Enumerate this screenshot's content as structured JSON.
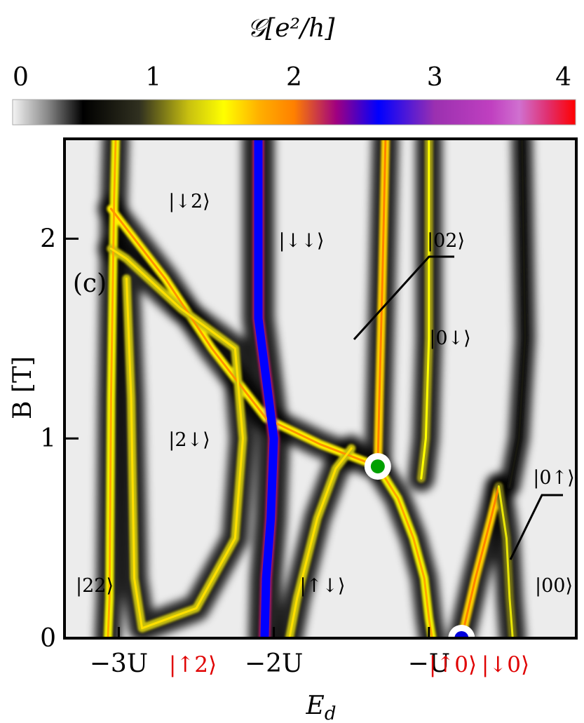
{
  "colorbar": {
    "title": "𝒢[e²/h]",
    "ticks": [
      "0",
      "1",
      "2",
      "3",
      "4"
    ],
    "tick_values": [
      0,
      1,
      2,
      3,
      4
    ],
    "range": [
      0,
      4
    ],
    "colormap": [
      {
        "v": 0.0,
        "c": "#f4f4f4"
      },
      {
        "v": 0.25,
        "c": "#888888"
      },
      {
        "v": 0.5,
        "c": "#000000"
      },
      {
        "v": 0.9,
        "c": "#303020"
      },
      {
        "v": 1.25,
        "c": "#c8c010"
      },
      {
        "v": 1.5,
        "c": "#ffff00"
      },
      {
        "v": 1.75,
        "c": "#ffb000"
      },
      {
        "v": 2.0,
        "c": "#ff8000"
      },
      {
        "v": 2.3,
        "c": "#a00080"
      },
      {
        "v": 2.6,
        "c": "#0000ff"
      },
      {
        "v": 3.0,
        "c": "#9b30b0"
      },
      {
        "v": 3.4,
        "c": "#c040c0"
      },
      {
        "v": 3.6,
        "c": "#d070d0"
      },
      {
        "v": 3.8,
        "c": "#e03070"
      },
      {
        "v": 4.0,
        "c": "#ff0000"
      }
    ]
  },
  "chart_data": {
    "type": "heatmap",
    "title": "",
    "panel_label": "(c)",
    "xlabel": "E_d",
    "ylabel": "B [T]",
    "ylim": [
      0,
      2.5
    ],
    "x_ticks": [
      "−3U",
      "−2U",
      "−U"
    ],
    "x_tick_values": [
      -3,
      -2,
      -1
    ],
    "xlim": [
      -3.35,
      -0.05
    ],
    "y_ticks": [
      "0",
      "1",
      "2"
    ],
    "y_tick_values": [
      0,
      1,
      2
    ],
    "x_axis_state_labels": [
      "|↑2⟩",
      "|↑0⟩",
      "|↓0⟩"
    ],
    "region_labels": [
      "|↓2⟩",
      "|↓↓⟩",
      "|02⟩",
      "|0↓⟩",
      "|2↓⟩",
      "|0↑⟩",
      "|22⟩",
      "|↑↓⟩",
      "|00⟩"
    ],
    "markers": [
      {
        "name": "green point",
        "x": -1.33,
        "y": 0.86,
        "color": "#00a000"
      },
      {
        "name": "blue point",
        "x": -0.79,
        "y": 0.0,
        "color": "#0000dd"
      }
    ],
    "resonance_lines": [
      {
        "name": "left conductance ridge",
        "peak_G": 1.8,
        "points": [
          [
            -3.02,
            2.5
          ],
          [
            -3.03,
            2.2
          ],
          [
            -3.05,
            1.2
          ],
          [
            -3.06,
            0.2
          ],
          [
            -3.07,
            0.0
          ]
        ]
      },
      {
        "name": "upper-left diagonal ridge",
        "peak_G": 1.9,
        "points": [
          [
            -3.05,
            2.15
          ],
          [
            -2.7,
            1.8
          ],
          [
            -2.4,
            1.45
          ],
          [
            -2.05,
            1.1
          ],
          [
            -1.7,
            0.97
          ],
          [
            -1.33,
            0.86
          ]
        ]
      },
      {
        "name": "|2↓⟩ loop ridge",
        "peak_G": 1.6,
        "points": [
          [
            -3.05,
            1.95
          ],
          [
            -2.95,
            1.9
          ],
          [
            -2.6,
            1.65
          ],
          [
            -2.25,
            1.45
          ],
          [
            -2.2,
            1.0
          ],
          [
            -2.25,
            0.5
          ],
          [
            -2.5,
            0.15
          ],
          [
            -2.85,
            0.05
          ],
          [
            -2.9,
            0.3
          ],
          [
            -2.92,
            1.2
          ],
          [
            -2.95,
            1.8
          ]
        ]
      },
      {
        "name": "central blue band",
        "peak_G": 2.6,
        "points": [
          [
            -2.1,
            2.5
          ],
          [
            -2.1,
            1.6
          ],
          [
            -2.05,
            1.3
          ],
          [
            -2.0,
            1.0
          ],
          [
            -2.02,
            0.6
          ],
          [
            -2.05,
            0.3
          ],
          [
            -2.06,
            0.0
          ]
        ]
      },
      {
        "name": "vertical orange line",
        "peak_G": 2.0,
        "points": [
          [
            -1.28,
            2.5
          ],
          [
            -1.3,
            1.8
          ],
          [
            -1.32,
            1.2
          ],
          [
            -1.33,
            0.86
          ]
        ]
      },
      {
        "name": "lower-middle ridge",
        "peak_G": 1.8,
        "points": [
          [
            -1.33,
            0.86
          ],
          [
            -1.2,
            0.7
          ],
          [
            -1.1,
            0.5
          ],
          [
            -1.03,
            0.3
          ],
          [
            -1.0,
            0.1
          ],
          [
            -0.98,
            0.0
          ]
        ]
      },
      {
        "name": "middle vertical ridge",
        "peak_G": 1.5,
        "points": [
          [
            -1.0,
            2.5
          ],
          [
            -1.0,
            1.5
          ],
          [
            -1.02,
            1.0
          ],
          [
            -1.05,
            0.8
          ]
        ]
      },
      {
        "name": "lower-left bowl ridge",
        "peak_G": 1.6,
        "points": [
          [
            -1.9,
            0.0
          ],
          [
            -1.85,
            0.2
          ],
          [
            -1.72,
            0.6
          ],
          [
            -1.6,
            0.85
          ],
          [
            -1.5,
            0.95
          ]
        ]
      },
      {
        "name": "right diagonal ridge",
        "peak_G": 2.0,
        "points": [
          [
            -0.79,
            0.0
          ],
          [
            -0.7,
            0.3
          ],
          [
            -0.6,
            0.6
          ],
          [
            -0.55,
            0.76
          ]
        ]
      },
      {
        "name": "right vertical ridge",
        "peak_G": 1.4,
        "points": [
          [
            -0.55,
            0.76
          ],
          [
            -0.5,
            0.5
          ],
          [
            -0.48,
            0.2
          ],
          [
            -0.46,
            0.0
          ]
        ]
      },
      {
        "name": "far right faint ridge",
        "peak_G": 0.7,
        "points": [
          [
            -0.4,
            2.5
          ],
          [
            -0.38,
            1.5
          ],
          [
            -0.42,
            1.0
          ],
          [
            -0.48,
            0.76
          ]
        ]
      }
    ]
  }
}
